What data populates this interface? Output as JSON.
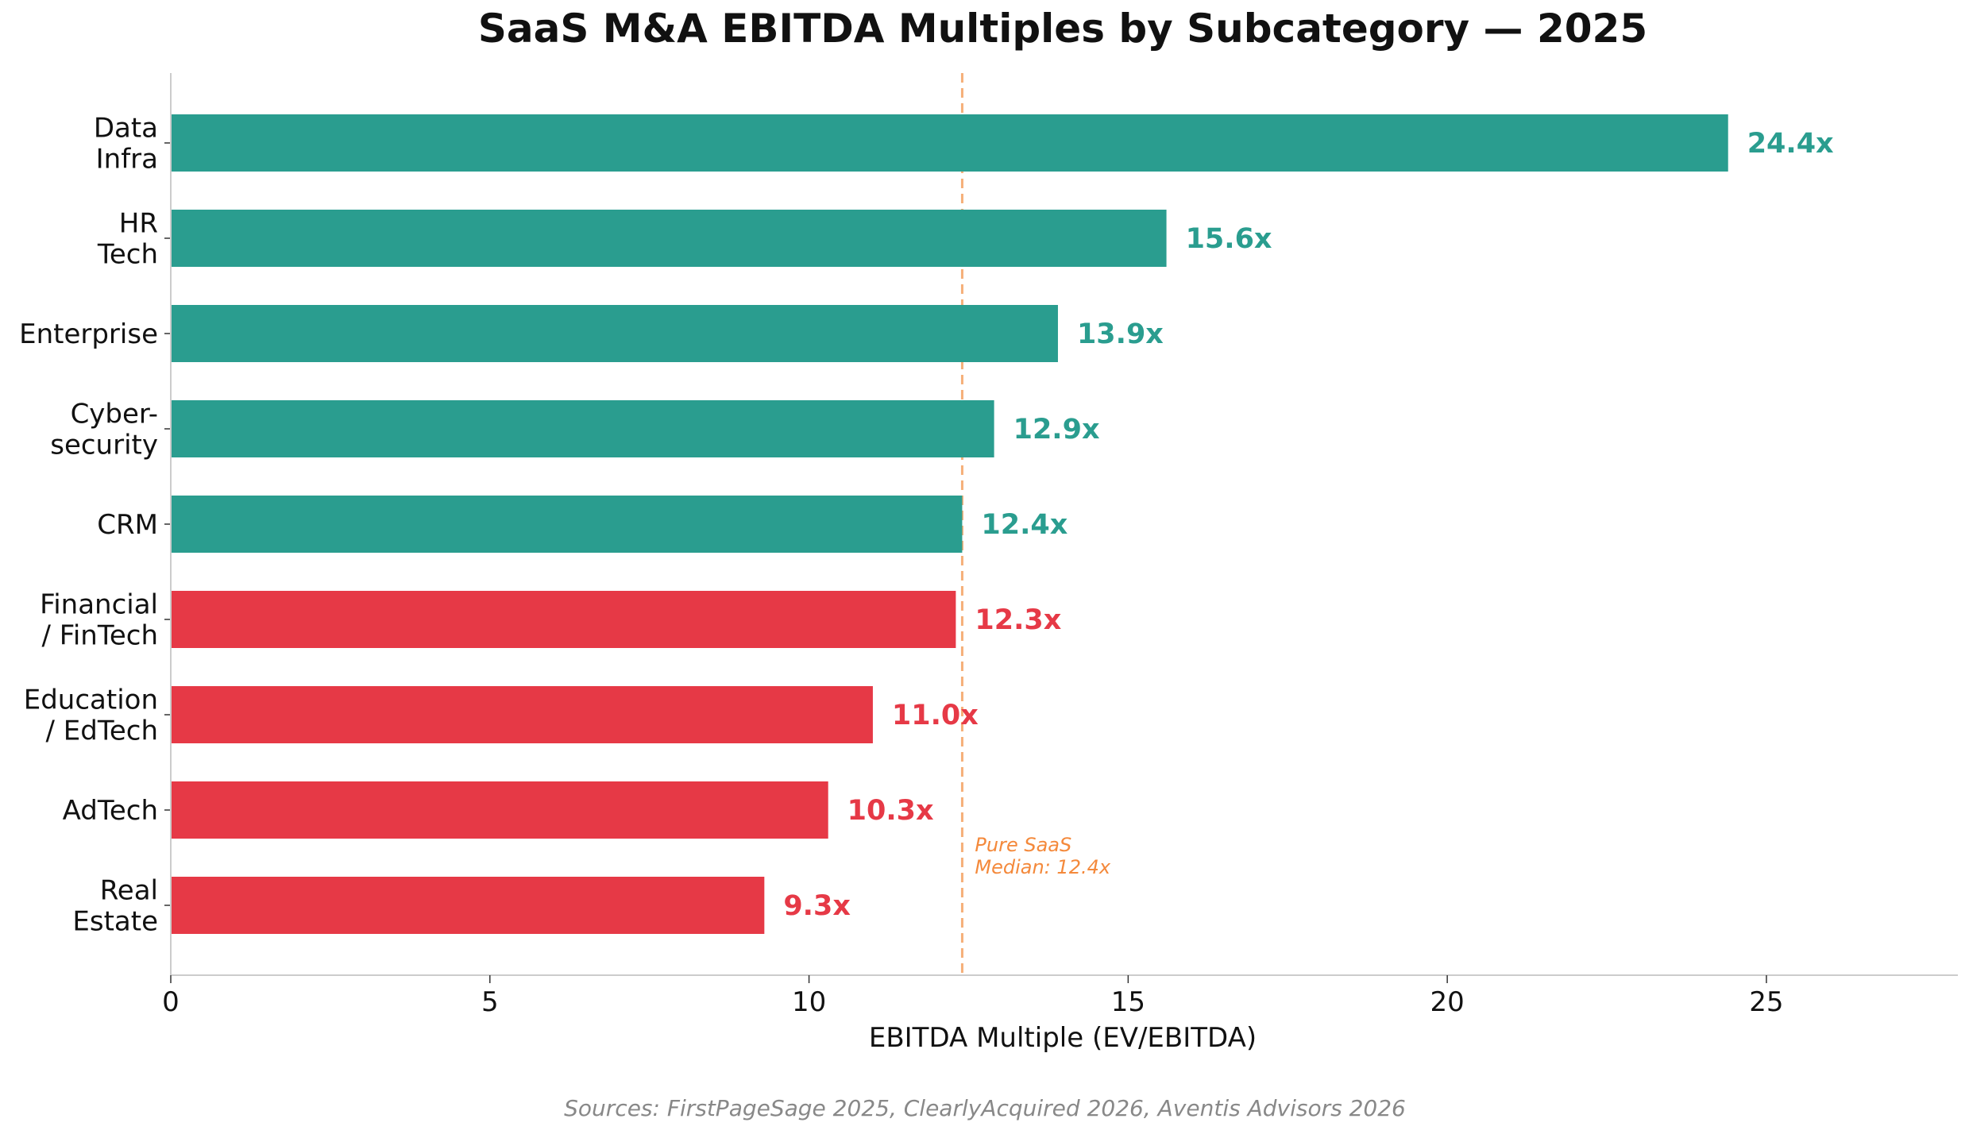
{
  "chart_data": {
    "type": "bar",
    "orientation": "horizontal",
    "title": "SaaS M&A EBITDA Multiples by Subcategory — 2025",
    "xlabel": "EBITDA Multiple (EV/EBITDA)",
    "ylabel": "",
    "xlim": [
      0,
      28
    ],
    "x_ticks": [
      0,
      5,
      10,
      15,
      20,
      25
    ],
    "grid": false,
    "categories": [
      [
        "Data",
        "Infra"
      ],
      [
        "HR",
        "Tech"
      ],
      [
        "Enterprise"
      ],
      [
        "Cyber-",
        "security"
      ],
      [
        "CRM"
      ],
      [
        "Financial",
        "/ FinTech"
      ],
      [
        "Education",
        "/ EdTech"
      ],
      [
        "AdTech"
      ],
      [
        "Real",
        "Estate"
      ]
    ],
    "values": [
      24.4,
      15.6,
      13.9,
      12.9,
      12.4,
      12.3,
      11.0,
      10.3,
      9.3
    ],
    "value_labels": [
      "24.4x",
      "15.6x",
      "13.9x",
      "12.9x",
      "12.4x",
      "12.3x",
      "11.0x",
      "10.3x",
      "9.3x"
    ],
    "bar_colors": [
      "#2a9d8f",
      "#2a9d8f",
      "#2a9d8f",
      "#2a9d8f",
      "#2a9d8f",
      "#e63946",
      "#e63946",
      "#e63946",
      "#e63946"
    ],
    "reference_line": {
      "value": 12.4,
      "style": "dashed",
      "color": "#f4a261",
      "label": [
        "Pure SaaS",
        "Median: 12.4x"
      ],
      "label_color": "#f4893b"
    },
    "source_note": "Sources: FirstPageSage 2025, ClearlyAcquired 2026, Aventis Advisors 2026"
  }
}
